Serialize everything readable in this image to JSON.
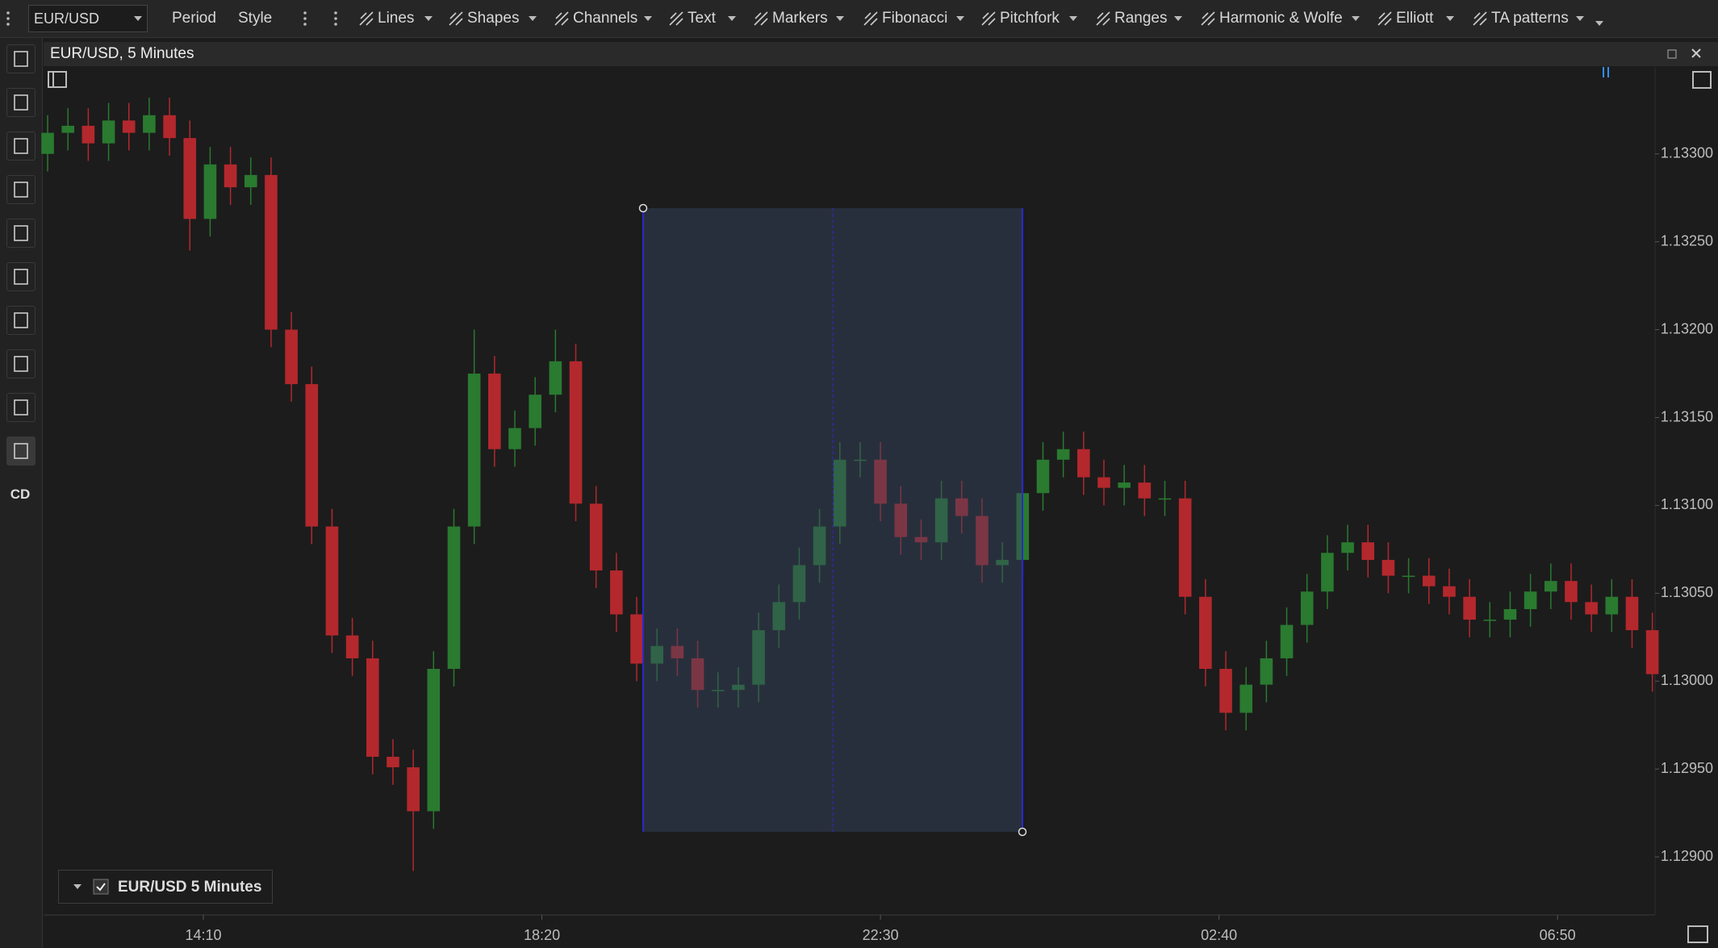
{
  "toolbar": {
    "symbol": "EUR/USD",
    "buttons": [
      "Period",
      "Style"
    ],
    "tools": [
      "Lines",
      "Shapes",
      "Channels",
      "Text",
      "Markers",
      "Fibonacci",
      "Pitchfork",
      "Ranges",
      "Harmonic & Wolfe",
      "Elliott",
      "TA patterns"
    ]
  },
  "side_toolbar": {
    "label": "CD"
  },
  "chart_data": {
    "type": "candlestick",
    "title": "EUR/USD, 5 Minutes",
    "legend": "EUR/USD 5 Minutes",
    "up_color": "#2a7a30",
    "down_color": "#b3282d",
    "xlim": [
      732,
      1922
    ],
    "xticks": [
      {
        "value": 850,
        "label": "14:10"
      },
      {
        "value": 1100,
        "label": "18:20"
      },
      {
        "value": 1350,
        "label": "22:30"
      },
      {
        "value": 1600,
        "label": "02:40"
      },
      {
        "value": 1850,
        "label": "06:50"
      }
    ],
    "ylim": [
      1.12867,
      1.13349
    ],
    "yticks": [
      {
        "value": 1.129,
        "label": "1.12900"
      },
      {
        "value": 1.1295,
        "label": "1.12950"
      },
      {
        "value": 1.13,
        "label": "1.13000"
      },
      {
        "value": 1.1305,
        "label": "1.13050"
      },
      {
        "value": 1.131,
        "label": "1.13100"
      },
      {
        "value": 1.1315,
        "label": "1.13150"
      },
      {
        "value": 1.132,
        "label": "1.13200"
      },
      {
        "value": 1.1325,
        "label": "1.13250"
      },
      {
        "value": 1.133,
        "label": "1.13300"
      }
    ],
    "x": [
      735,
      750,
      765,
      780,
      795,
      810,
      825,
      840,
      855,
      870,
      885,
      900,
      915,
      930,
      945,
      960,
      975,
      990,
      1005,
      1020,
      1035,
      1050,
      1065,
      1080,
      1095,
      1110,
      1125,
      1140,
      1155,
      1170,
      1185,
      1200,
      1215,
      1230,
      1245,
      1260,
      1275,
      1290,
      1305,
      1320,
      1335,
      1350,
      1365,
      1380,
      1395,
      1410,
      1425,
      1440,
      1455,
      1470,
      1485,
      1500,
      1515,
      1530,
      1545,
      1560,
      1575,
      1590,
      1605,
      1620,
      1635,
      1650,
      1665,
      1680,
      1695,
      1710,
      1725,
      1740,
      1755,
      1770,
      1785,
      1800,
      1815,
      1830,
      1845,
      1860,
      1875,
      1890,
      1905,
      1920
    ],
    "open": [
      1.133,
      1.13312,
      1.13316,
      1.13306,
      1.13319,
      1.13312,
      1.13322,
      1.13309,
      1.13263,
      1.13294,
      1.13281,
      1.13288,
      1.132,
      1.13169,
      1.13088,
      1.13026,
      1.13013,
      1.12957,
      1.12951,
      1.12926,
      1.13007,
      1.13088,
      1.13175,
      1.13132,
      1.13144,
      1.13163,
      1.13182,
      1.13101,
      1.13063,
      1.13038,
      1.1301,
      1.1302,
      1.13013,
      1.12995,
      1.12995,
      1.12998,
      1.13029,
      1.13045,
      1.13066,
      1.13088,
      1.13126,
      1.13126,
      1.13101,
      1.13082,
      1.13079,
      1.13104,
      1.13094,
      1.13066,
      1.13069,
      1.13107,
      1.13126,
      1.13132,
      1.13116,
      1.1311,
      1.13113,
      1.13104,
      1.13104,
      1.13048,
      1.13007,
      1.12982,
      1.12998,
      1.13013,
      1.13032,
      1.13051,
      1.13073,
      1.13079,
      1.13069,
      1.1306,
      1.1306,
      1.13054,
      1.13048,
      1.13035,
      1.13035,
      1.13041,
      1.13051,
      1.13057,
      1.13045,
      1.13038,
      1.13048,
      1.13029
    ],
    "high": [
      1.13322,
      1.13326,
      1.13326,
      1.13329,
      1.13329,
      1.13332,
      1.13332,
      1.13319,
      1.13304,
      1.13304,
      1.13298,
      1.13298,
      1.1321,
      1.13179,
      1.13098,
      1.13036,
      1.13023,
      1.12967,
      1.12961,
      1.13017,
      1.13098,
      1.132,
      1.13185,
      1.13154,
      1.13173,
      1.132,
      1.13192,
      1.13111,
      1.13073,
      1.13048,
      1.1303,
      1.1303,
      1.13023,
      1.13005,
      1.13008,
      1.13039,
      1.13055,
      1.13076,
      1.13098,
      1.13136,
      1.13136,
      1.13136,
      1.13111,
      1.13092,
      1.13114,
      1.13114,
      1.13104,
      1.13079,
      1.13117,
      1.13136,
      1.13142,
      1.13142,
      1.13126,
      1.13123,
      1.13123,
      1.13114,
      1.13114,
      1.13058,
      1.13017,
      1.13008,
      1.13023,
      1.13042,
      1.13061,
      1.13083,
      1.13089,
      1.13089,
      1.13079,
      1.1307,
      1.1307,
      1.13064,
      1.13058,
      1.13045,
      1.13051,
      1.13061,
      1.13067,
      1.13067,
      1.13055,
      1.13058,
      1.13058,
      1.13039
    ],
    "low": [
      1.1329,
      1.13302,
      1.13296,
      1.13296,
      1.13302,
      1.13302,
      1.13299,
      1.13245,
      1.13253,
      1.13271,
      1.13271,
      1.1319,
      1.13159,
      1.13078,
      1.13016,
      1.13003,
      1.12947,
      1.12941,
      1.12892,
      1.12916,
      1.12997,
      1.13078,
      1.13122,
      1.13122,
      1.13134,
      1.13153,
      1.13091,
      1.13053,
      1.13028,
      1.13,
      1.13,
      1.13003,
      1.12985,
      1.12985,
      1.12985,
      1.12988,
      1.13019,
      1.13035,
      1.13056,
      1.13078,
      1.13116,
      1.13091,
      1.13072,
      1.13069,
      1.13069,
      1.13084,
      1.13056,
      1.13056,
      1.13059,
      1.13097,
      1.13116,
      1.13106,
      1.131,
      1.131,
      1.13094,
      1.13094,
      1.13038,
      1.12997,
      1.12972,
      1.12972,
      1.12988,
      1.13003,
      1.13022,
      1.13041,
      1.13063,
      1.13059,
      1.1305,
      1.1305,
      1.13044,
      1.13038,
      1.13025,
      1.13025,
      1.13025,
      1.13031,
      1.13041,
      1.13035,
      1.13028,
      1.13028,
      1.13019,
      1.12994
    ],
    "close": [
      1.13312,
      1.13316,
      1.13306,
      1.13319,
      1.13312,
      1.13322,
      1.13309,
      1.13263,
      1.13294,
      1.13281,
      1.13288,
      1.132,
      1.13169,
      1.13088,
      1.13026,
      1.13013,
      1.12957,
      1.12951,
      1.12926,
      1.13007,
      1.13088,
      1.13175,
      1.13132,
      1.13144,
      1.13163,
      1.13182,
      1.13101,
      1.13063,
      1.13038,
      1.1301,
      1.1302,
      1.13013,
      1.12995,
      1.12995,
      1.12998,
      1.13029,
      1.13045,
      1.13066,
      1.13088,
      1.13126,
      1.13126,
      1.13101,
      1.13082,
      1.13079,
      1.13104,
      1.13094,
      1.13066,
      1.13069,
      1.13107,
      1.13126,
      1.13132,
      1.13116,
      1.1311,
      1.13113,
      1.13104,
      1.13104,
      1.13048,
      1.13007,
      1.12982,
      1.12998,
      1.13013,
      1.13032,
      1.13051,
      1.13073,
      1.13079,
      1.13069,
      1.1306,
      1.1306,
      1.13054,
      1.13048,
      1.13035,
      1.13035,
      1.13041,
      1.13051,
      1.13057,
      1.13045,
      1.13038,
      1.13048,
      1.13029,
      1.13004
    ]
  }
}
